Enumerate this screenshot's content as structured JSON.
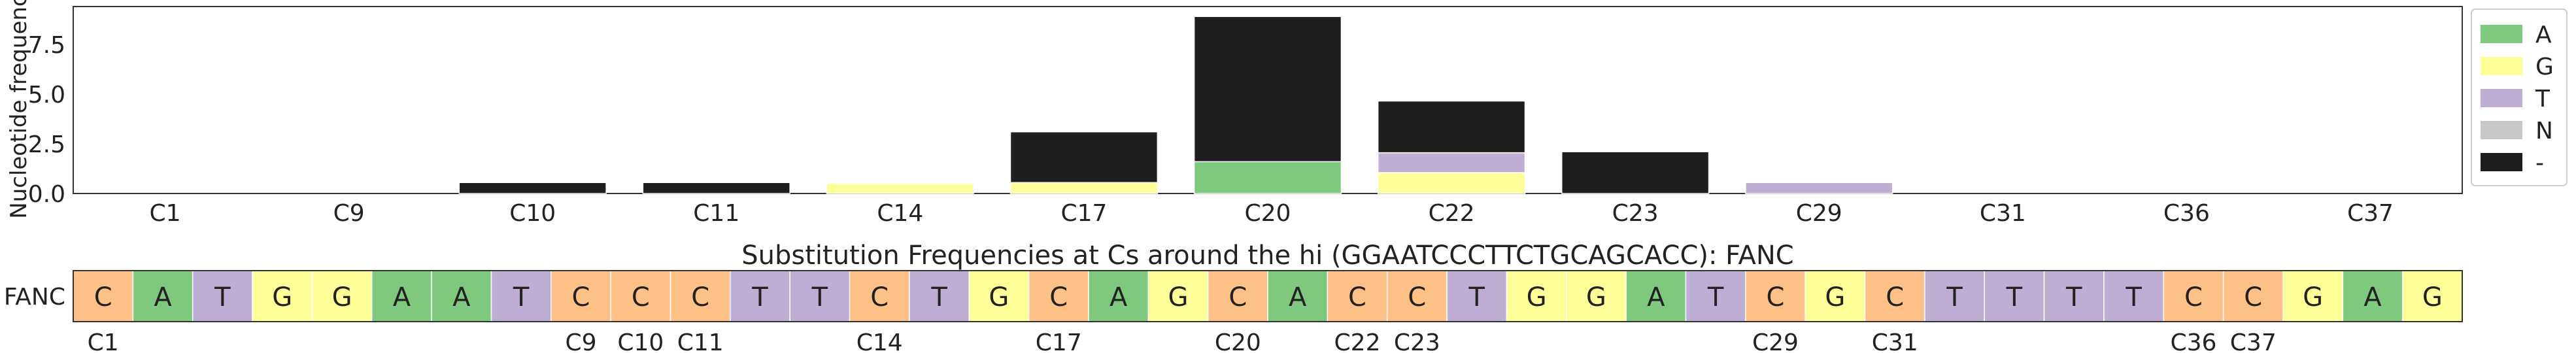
{
  "chart_data": [
    {
      "type": "bar",
      "stacked": true,
      "ylabel": "Nucleotide frequency",
      "ylim": [
        0,
        9.4
      ],
      "yticks": [
        "0.0",
        "2.5",
        "5.0",
        "7.5"
      ],
      "ytick_values": [
        0,
        2.5,
        5,
        7.5
      ],
      "categories": [
        "C1",
        "C9",
        "C10",
        "C11",
        "C14",
        "C17",
        "C20",
        "C22",
        "C23",
        "C29",
        "C31",
        "C36",
        "C37"
      ],
      "series": [
        {
          "name": "A",
          "color": "#7fc97f",
          "values": [
            0,
            0,
            0,
            0,
            0,
            0,
            1.6,
            0,
            0,
            0,
            0,
            0,
            0
          ]
        },
        {
          "name": "G",
          "color": "#ffff99",
          "values": [
            0,
            0,
            0,
            0,
            0.5,
            0.55,
            0,
            1.05,
            0,
            0,
            0,
            0,
            0
          ]
        },
        {
          "name": "T",
          "color": "#beaed4",
          "values": [
            0,
            0,
            0,
            0,
            0,
            0,
            0,
            1.0,
            0,
            0.55,
            0,
            0,
            0
          ]
        },
        {
          "name": "N",
          "color": "#c8c8c8",
          "values": [
            0,
            0,
            0,
            0,
            0,
            0,
            0,
            0,
            0,
            0,
            0,
            0,
            0
          ]
        },
        {
          "name": "-",
          "color": "#1e1e1e",
          "values": [
            0,
            0,
            0.55,
            0.55,
            0,
            2.55,
            7.3,
            2.6,
            2.1,
            0,
            0,
            0,
            0
          ]
        }
      ],
      "legend_position": "right"
    },
    {
      "type": "table",
      "title": "Substitution Frequencies at Cs around the hi (GGAATCCCTTCTGCAGCACC): FANC",
      "row_label": "FANC",
      "sequence": [
        "C",
        "A",
        "T",
        "G",
        "G",
        "A",
        "A",
        "T",
        "C",
        "C",
        "C",
        "T",
        "T",
        "C",
        "T",
        "G",
        "C",
        "A",
        "G",
        "C",
        "A",
        "C",
        "C",
        "T",
        "G",
        "G",
        "A",
        "T",
        "C",
        "G",
        "C",
        "T",
        "T",
        "T",
        "T",
        "C",
        "C",
        "G",
        "A",
        "G"
      ],
      "position_labels": [
        {
          "index": 0,
          "label": "C1"
        },
        {
          "index": 8,
          "label": "C9"
        },
        {
          "index": 9,
          "label": "C10"
        },
        {
          "index": 10,
          "label": "C11"
        },
        {
          "index": 13,
          "label": "C14"
        },
        {
          "index": 16,
          "label": "C17"
        },
        {
          "index": 19,
          "label": "C20"
        },
        {
          "index": 21,
          "label": "C22"
        },
        {
          "index": 22,
          "label": "C23"
        },
        {
          "index": 28,
          "label": "C29"
        },
        {
          "index": 30,
          "label": "C31"
        },
        {
          "index": 35,
          "label": "C36"
        },
        {
          "index": 36,
          "label": "C37"
        }
      ],
      "base_colors": {
        "A": "#7fc97f",
        "C": "#fdc086",
        "G": "#ffff99",
        "T": "#beaed4"
      }
    }
  ]
}
